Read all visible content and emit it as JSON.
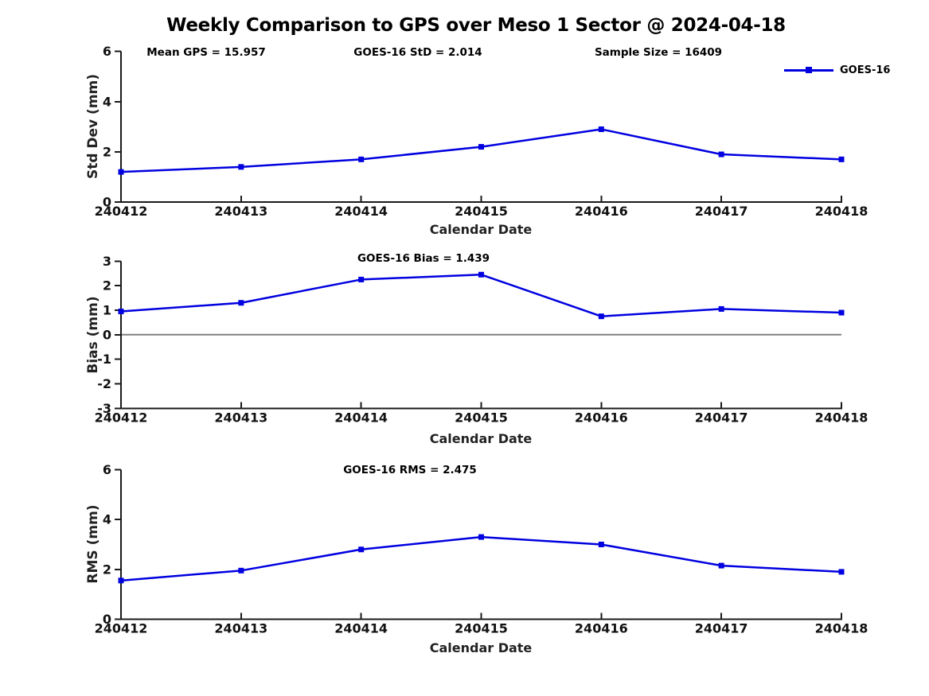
{
  "title": "Weekly Comparison to GPS over Meso 1 Sector @ 2024-04-18",
  "legend": {
    "label": "GOES-16"
  },
  "colors": {
    "series": "#0000e0",
    "axis": "#1a1a1a",
    "text": "#111111",
    "zero_line": "#808080",
    "background": "#ffffff"
  },
  "chart_data": [
    {
      "type": "line",
      "name": "std-dev",
      "annotations": [
        "Mean GPS = 15.957",
        "GOES-16 StD = 2.014",
        "Sample Size = 16409"
      ],
      "categories": [
        "240412",
        "240413",
        "240414",
        "240415",
        "240416",
        "240417",
        "240418"
      ],
      "series": [
        {
          "name": "GOES-16",
          "values": [
            1.2,
            1.4,
            1.7,
            2.2,
            2.9,
            1.9,
            1.7
          ]
        }
      ],
      "xlabel": "Calendar Date",
      "ylabel": "Std Dev (mm)",
      "ylim": [
        0,
        6
      ],
      "yticks": [
        0,
        2,
        4,
        6
      ],
      "zero_line": false,
      "legend_position": "upper right",
      "grid": false
    },
    {
      "type": "line",
      "name": "bias",
      "annotations": [
        "GOES-16 Bias  = 1.439"
      ],
      "categories": [
        "240412",
        "240413",
        "240414",
        "240415",
        "240416",
        "240417",
        "240418"
      ],
      "series": [
        {
          "name": "GOES-16",
          "values": [
            0.95,
            1.3,
            2.25,
            2.45,
            0.75,
            1.05,
            0.9
          ]
        }
      ],
      "xlabel": "Calendar Date",
      "ylabel": "Bias (mm)",
      "ylim": [
        -3,
        3
      ],
      "yticks": [
        -3,
        -2,
        -1,
        0,
        1,
        2,
        3
      ],
      "zero_line": true,
      "grid": false
    },
    {
      "type": "line",
      "name": "rms",
      "annotations": [
        "GOES-16 RMS = 2.475"
      ],
      "categories": [
        "240412",
        "240413",
        "240414",
        "240415",
        "240416",
        "240417",
        "240418"
      ],
      "series": [
        {
          "name": "GOES-16",
          "values": [
            1.55,
            1.95,
            2.8,
            3.3,
            3.0,
            2.15,
            1.9
          ]
        }
      ],
      "xlabel": "Calendar Date",
      "ylabel": "RMS (mm)",
      "ylim": [
        0,
        6
      ],
      "yticks": [
        0,
        2,
        4,
        6
      ],
      "zero_line": false,
      "grid": false
    }
  ]
}
